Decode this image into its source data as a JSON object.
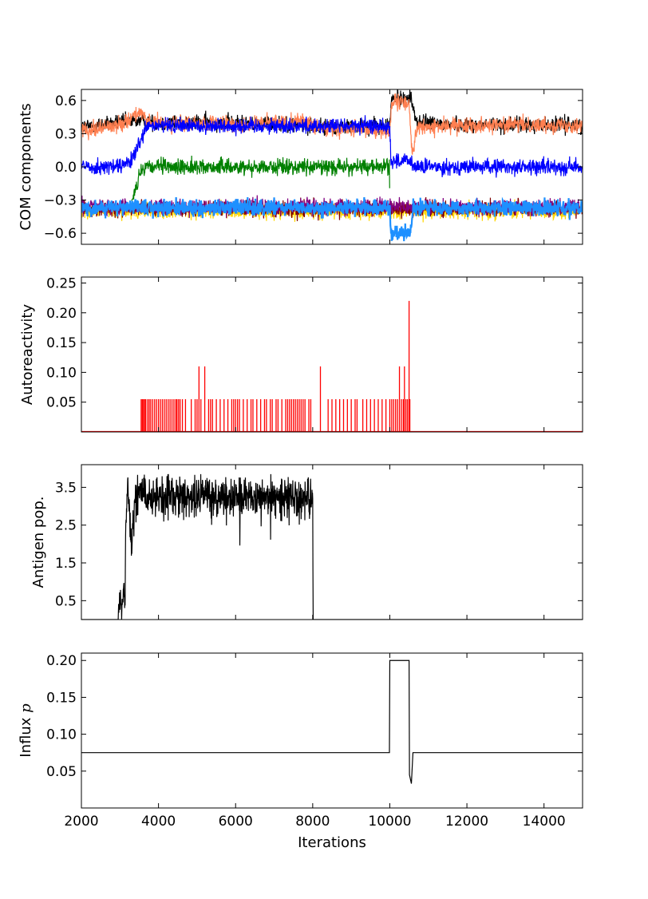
{
  "chart_data": [
    {
      "type": "line",
      "ylabel": "COM components",
      "xlim": [
        2000,
        15000
      ],
      "ylim": [
        -0.7,
        0.7
      ],
      "yticks": [
        0.6,
        0.3,
        0.0,
        -0.3,
        -0.6
      ],
      "ytick_labels": [
        "0.6",
        "0.3",
        "0.0",
        "−0.3",
        "−0.6"
      ],
      "show_xticklabels": false,
      "series": [
        {
          "color": "#000000",
          "values": [
            [
              2000,
              0.36
            ],
            [
              3500,
              0.42
            ],
            [
              4000,
              0.4
            ],
            [
              6000,
              0.4
            ],
            [
              7800,
              0.38
            ],
            [
              8000,
              0.36
            ],
            [
              9000,
              0.36
            ],
            [
              10000,
              0.37
            ],
            [
              10050,
              0.62
            ],
            [
              10550,
              0.62
            ],
            [
              10700,
              0.4
            ],
            [
              12000,
              0.38
            ],
            [
              15000,
              0.38
            ]
          ]
        },
        {
          "color": "#FF7F50",
          "values": [
            [
              2000,
              0.33
            ],
            [
              3000,
              0.38
            ],
            [
              3500,
              0.5
            ],
            [
              3700,
              0.4
            ],
            [
              6000,
              0.38
            ],
            [
              7800,
              0.42
            ],
            [
              8000,
              0.36
            ],
            [
              10000,
              0.32
            ],
            [
              10050,
              0.58
            ],
            [
              10500,
              0.58
            ],
            [
              10580,
              0.1
            ],
            [
              10700,
              0.35
            ],
            [
              12000,
              0.38
            ],
            [
              15000,
              0.38
            ]
          ]
        },
        {
          "color": "#0000FF",
          "values": [
            [
              2000,
              0.0
            ],
            [
              3000,
              0.0
            ],
            [
              3300,
              0.05
            ],
            [
              3700,
              0.36
            ],
            [
              4000,
              0.37
            ],
            [
              9900,
              0.37
            ],
            [
              10000,
              0.36
            ],
            [
              10030,
              0.05
            ],
            [
              10540,
              0.05
            ],
            [
              10620,
              0.0
            ],
            [
              12000,
              0.0
            ],
            [
              15000,
              0.0
            ]
          ]
        },
        {
          "color": "#008000",
          "values": [
            [
              3300,
              -0.3
            ],
            [
              3550,
              -0.05
            ],
            [
              3750,
              0.0
            ],
            [
              9990,
              0.0
            ],
            [
              10000,
              -0.3
            ]
          ]
        },
        {
          "color": "#FFD700",
          "values": [
            [
              2000,
              -0.4
            ],
            [
              15000,
              -0.4
            ]
          ]
        },
        {
          "color": "#800000",
          "values": [
            [
              2000,
              -0.38
            ],
            [
              15000,
              -0.38
            ]
          ]
        },
        {
          "color": "#800080",
          "values": [
            [
              2000,
              -0.36
            ],
            [
              15000,
              -0.36
            ]
          ]
        },
        {
          "color": "#1E90FF",
          "values": [
            [
              2000,
              -0.37
            ],
            [
              10000,
              -0.37
            ],
            [
              10030,
              -0.6
            ],
            [
              10530,
              -0.6
            ],
            [
              10600,
              -0.37
            ],
            [
              15000,
              -0.37
            ]
          ]
        }
      ]
    },
    {
      "type": "bar",
      "ylabel": "Autoreactivity",
      "xlim": [
        2000,
        15000
      ],
      "ylim": [
        0,
        0.26
      ],
      "yticks": [
        0.05,
        0.1,
        0.15,
        0.2,
        0.25
      ],
      "ytick_labels": [
        "0.05",
        "0.10",
        "0.15",
        "0.20",
        "0.25"
      ],
      "show_xticklabels": false,
      "color": "#FF0000",
      "x": [
        3550,
        3580,
        3610,
        3640,
        3670,
        3720,
        3760,
        3800,
        3850,
        3900,
        3950,
        4000,
        4050,
        4100,
        4150,
        4200,
        4250,
        4300,
        4350,
        4400,
        4450,
        4480,
        4520,
        4560,
        4620,
        4700,
        4850,
        4950,
        5000,
        5050,
        5100,
        5200,
        5300,
        5350,
        5400,
        5500,
        5600,
        5700,
        5800,
        5900,
        5950,
        6000,
        6050,
        6100,
        6200,
        6300,
        6400,
        6450,
        6550,
        6650,
        6750,
        6800,
        6900,
        6950,
        7050,
        7100,
        7200,
        7300,
        7350,
        7400,
        7450,
        7500,
        7550,
        7600,
        7650,
        7700,
        7750,
        7800,
        7900,
        7950,
        8200,
        8400,
        8500,
        8600,
        8700,
        8800,
        8900,
        9000,
        9100,
        9150,
        9300,
        9400,
        9500,
        9600,
        9700,
        9800,
        9900,
        10000,
        10050,
        10100,
        10150,
        10200,
        10250,
        10300,
        10350,
        10380,
        10420,
        10460,
        10500,
        10520
      ],
      "values": [
        0.055,
        0.055,
        0.055,
        0.055,
        0.055,
        0.055,
        0.055,
        0.055,
        0.055,
        0.055,
        0.055,
        0.055,
        0.055,
        0.055,
        0.055,
        0.055,
        0.055,
        0.055,
        0.055,
        0.055,
        0.055,
        0.055,
        0.055,
        0.055,
        0.055,
        0.055,
        0.055,
        0.055,
        0.055,
        0.11,
        0.055,
        0.11,
        0.055,
        0.055,
        0.055,
        0.055,
        0.055,
        0.055,
        0.055,
        0.055,
        0.055,
        0.055,
        0.055,
        0.055,
        0.055,
        0.055,
        0.055,
        0.055,
        0.055,
        0.055,
        0.055,
        0.055,
        0.055,
        0.055,
        0.055,
        0.055,
        0.055,
        0.055,
        0.055,
        0.055,
        0.055,
        0.055,
        0.055,
        0.055,
        0.055,
        0.055,
        0.055,
        0.055,
        0.055,
        0.055,
        0.11,
        0.055,
        0.055,
        0.055,
        0.055,
        0.055,
        0.055,
        0.055,
        0.055,
        0.055,
        0.055,
        0.055,
        0.055,
        0.055,
        0.055,
        0.055,
        0.055,
        0.055,
        0.055,
        0.055,
        0.055,
        0.055,
        0.11,
        0.055,
        0.055,
        0.11,
        0.055,
        0.055,
        0.22,
        0.055
      ]
    },
    {
      "type": "line",
      "ylabel": "Antigen pop.",
      "xlim": [
        2000,
        15000
      ],
      "ylim": [
        0,
        4.1
      ],
      "yticks": [
        0.5,
        1.5,
        2.5,
        3.5
      ],
      "ytick_labels": [
        "0.5",
        "1.5",
        "2.5",
        "3.5"
      ],
      "show_xticklabels": false,
      "color": "#000000",
      "values": [
        [
          2000,
          0
        ],
        [
          2950,
          0
        ],
        [
          3000,
          0.6
        ],
        [
          3050,
          0.3
        ],
        [
          3100,
          0.9
        ],
        [
          3130,
          0.1
        ],
        [
          3150,
          2.5
        ],
        [
          3200,
          3.6
        ],
        [
          3300,
          2.0
        ],
        [
          3400,
          3.2
        ],
        [
          3500,
          3.3
        ],
        [
          4000,
          3.2
        ],
        [
          5000,
          3.3
        ],
        [
          6000,
          3.2
        ],
        [
          7000,
          3.3
        ],
        [
          7500,
          3.2
        ],
        [
          8000,
          3.2
        ],
        [
          8010,
          0
        ],
        [
          15000,
          0
        ]
      ]
    },
    {
      "type": "line",
      "ylabel": "Influx ",
      "ylabel_symbol": "p",
      "xlabel": "Iterations",
      "xlim": [
        2000,
        15000
      ],
      "ylim": [
        0,
        0.21
      ],
      "yticks": [
        0.05,
        0.1,
        0.15,
        0.2
      ],
      "ytick_labels": [
        "0.05",
        "0.10",
        "0.15",
        "0.20"
      ],
      "xticks": [
        2000,
        4000,
        6000,
        8000,
        10000,
        12000,
        14000
      ],
      "xtick_labels": [
        "2000",
        "4000",
        "6000",
        "8000",
        "10000",
        "12000",
        "14000"
      ],
      "show_xticklabels": true,
      "color": "#000000",
      "values": [
        [
          2000,
          0.075
        ],
        [
          9990,
          0.075
        ],
        [
          10000,
          0.2
        ],
        [
          10500,
          0.2
        ],
        [
          10510,
          0.045
        ],
        [
          10560,
          0.033
        ],
        [
          10600,
          0.075
        ],
        [
          15000,
          0.075
        ]
      ]
    }
  ]
}
